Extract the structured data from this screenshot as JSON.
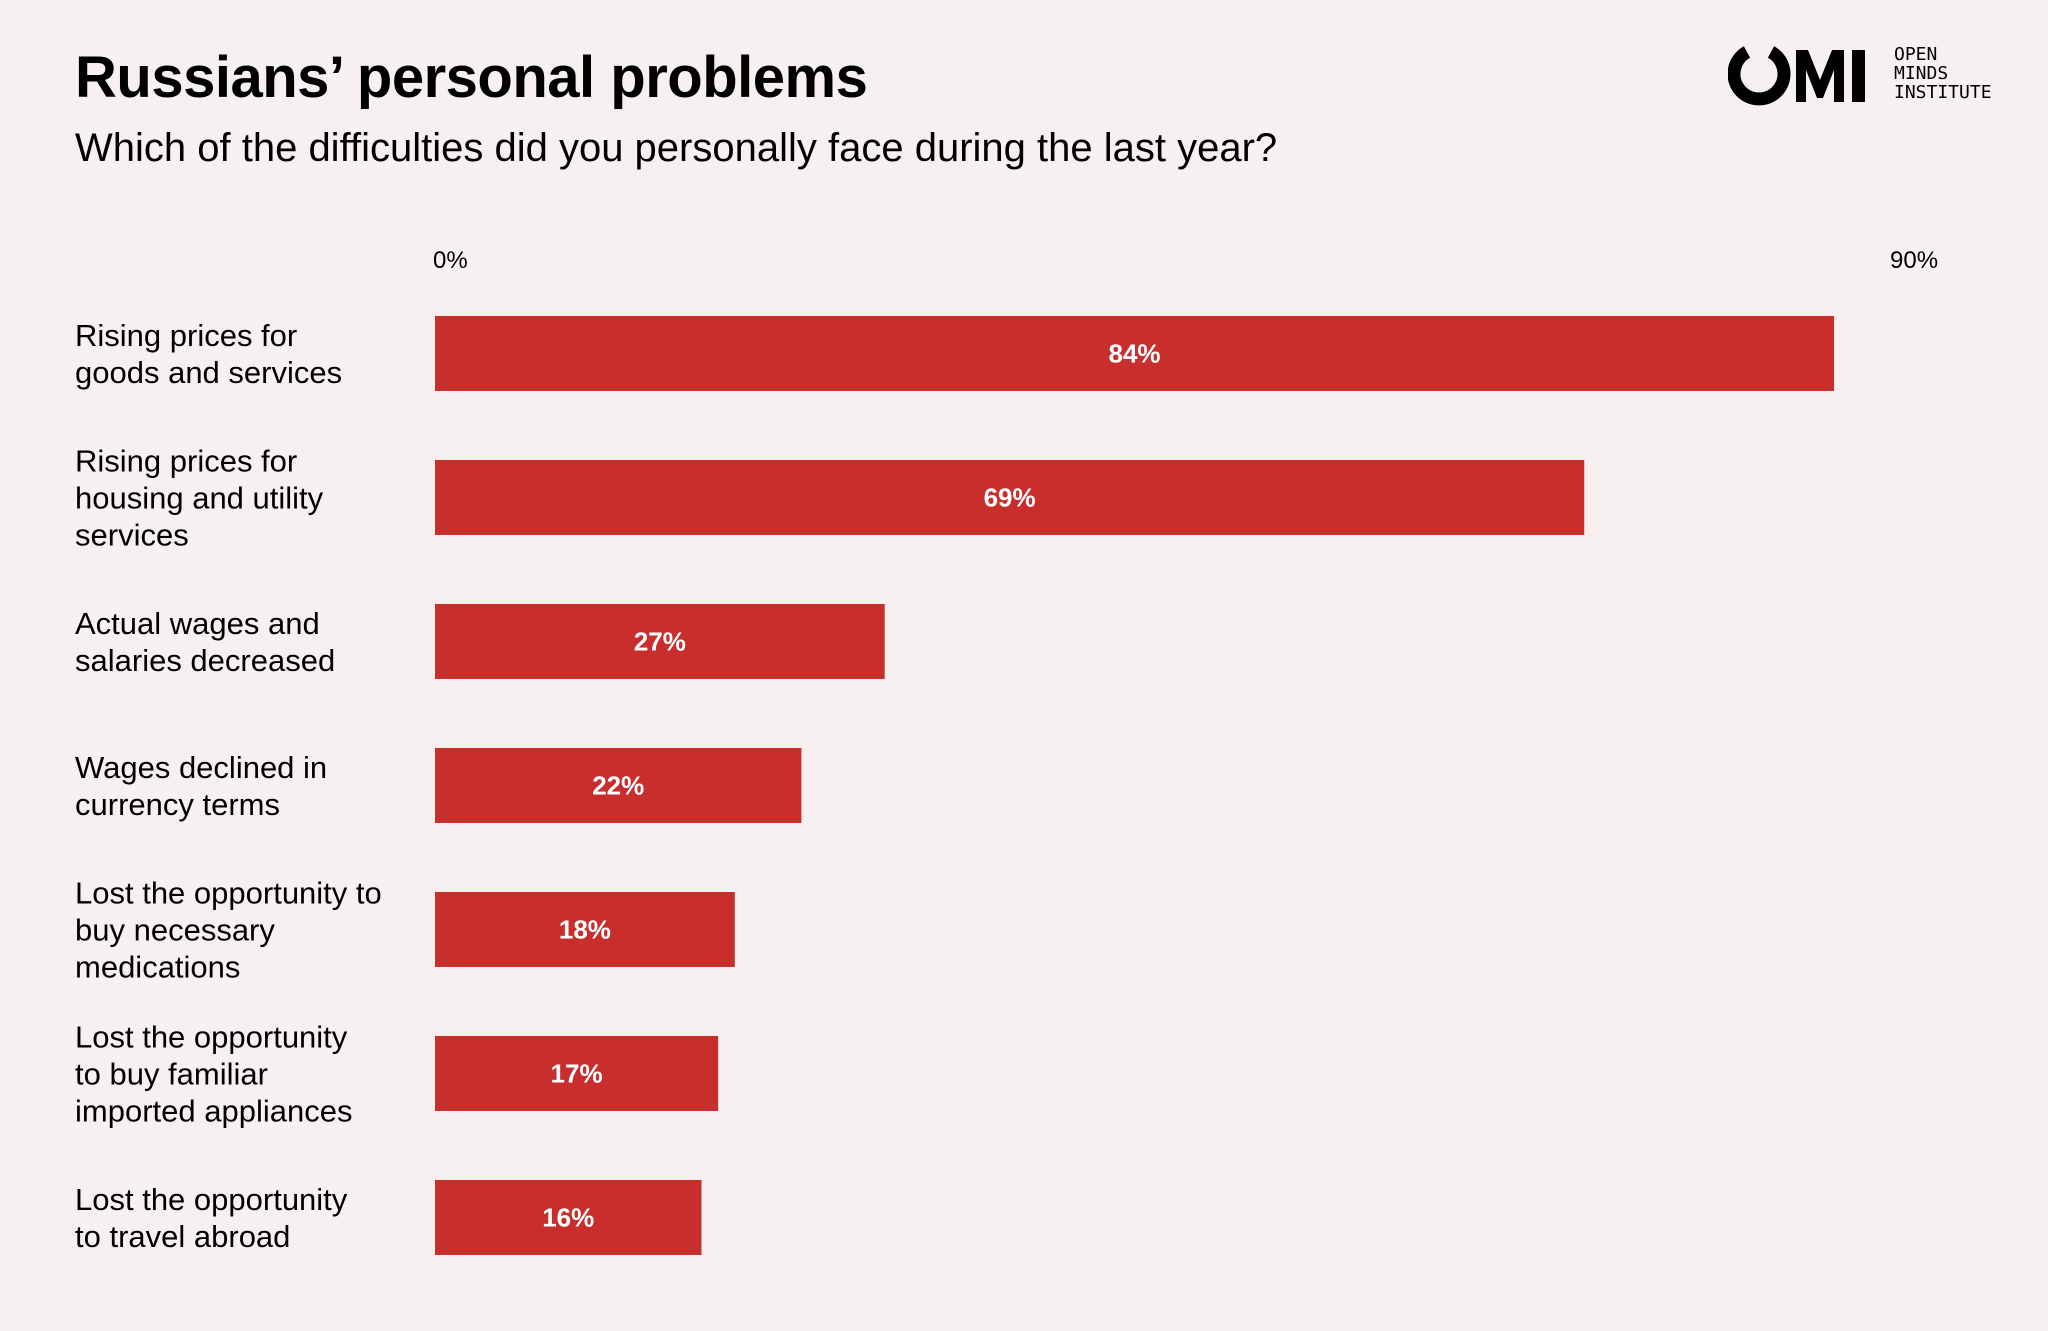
{
  "header": {
    "title": "Russians’ personal problems",
    "subtitle": "Which of the difficulties did you personally face during the last year?"
  },
  "logo": {
    "mark": "OMI",
    "lines": [
      "OPEN",
      "MINDS",
      "INSTITUTE"
    ]
  },
  "chart_data": {
    "type": "bar",
    "orientation": "horizontal",
    "title": "Russians’ personal problems",
    "subtitle": "Which of the difficulties did you personally face during the last year?",
    "xlim": [
      0,
      90
    ],
    "tick_labels": [
      "0%",
      "90%"
    ],
    "grid": false,
    "legend": "none",
    "bar_color": "#c82e2b",
    "value_label_color": "#ffffff",
    "unit": "%",
    "categories": [
      [
        "Rising prices for",
        "goods and services"
      ],
      [
        "Rising prices for",
        "housing and utility",
        "services"
      ],
      [
        "Actual wages and",
        "salaries decreased"
      ],
      [
        "Wages declined in",
        "currency terms"
      ],
      [
        "Lost the opportunity to",
        "buy necessary",
        "medications"
      ],
      [
        "Lost the opportunity",
        "to buy familiar",
        "imported appliances"
      ],
      [
        "Lost the opportunity",
        "to travel abroad"
      ]
    ],
    "values": [
      84,
      69,
      27,
      22,
      18,
      17,
      16
    ],
    "value_labels": [
      "84%",
      "69%",
      "27%",
      "22%",
      "18%",
      "17%",
      "16%"
    ]
  },
  "colors": {
    "background": "#f6f1f0",
    "bar": "#c82e2b",
    "text": "#000000"
  }
}
